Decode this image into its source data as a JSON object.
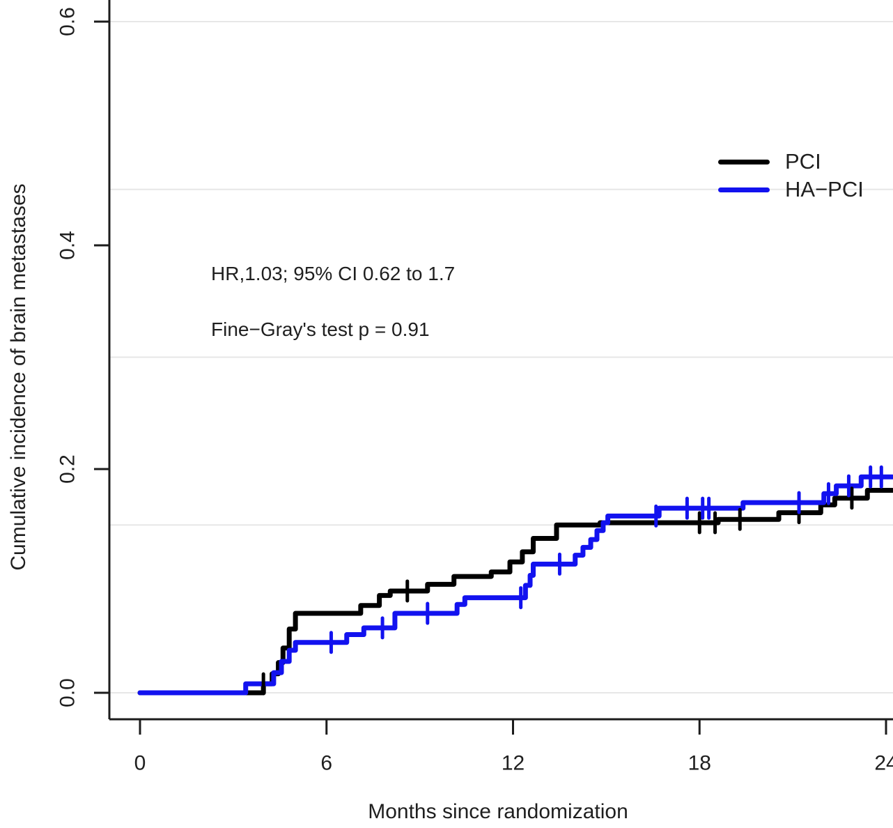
{
  "page": {
    "background": "#ffffff"
  },
  "chart_data": {
    "type": "line",
    "subtype": "step-cumulative-incidence",
    "title": "",
    "xlabel": "Months since randomization",
    "ylabel": "Cumulative incidence of brain metastases",
    "xlim": [
      0,
      24.2
    ],
    "ylim": [
      0,
      0.62
    ],
    "x_ticks": [
      0,
      6,
      12,
      18,
      24
    ],
    "y_ticks": [
      0,
      0.2,
      0.4,
      0.6
    ],
    "y_tick_labels": [
      "0.0",
      "0.2",
      "0.4",
      "0.6"
    ],
    "gridlines_y": [
      0,
      0.15,
      0.3,
      0.45,
      0.6
    ],
    "grid": true,
    "legend_position": "top-right-inside",
    "annotations": [
      "HR,1.03; 95% CI 0.62 to 1.7",
      "Fine−Gray's test p = 0.91"
    ],
    "colors": {
      "axis": "#1c1c1c",
      "grid": "#e7e7e7",
      "text": "#1f1f1f",
      "pci": "#000000",
      "ha_pci": "#1212ef"
    },
    "series": [
      {
        "name": "PCI",
        "color": "#000000",
        "steps": [
          [
            0,
            0
          ],
          [
            3.97,
            0.008
          ],
          [
            4.25,
            0.017
          ],
          [
            4.45,
            0.027
          ],
          [
            4.6,
            0.04
          ],
          [
            4.8,
            0.057
          ],
          [
            5.0,
            0.071
          ],
          [
            7.1,
            0.078
          ],
          [
            7.7,
            0.087
          ],
          [
            8.05,
            0.091
          ],
          [
            9.25,
            0.097
          ],
          [
            10.1,
            0.104
          ],
          [
            11.3,
            0.108
          ],
          [
            11.9,
            0.117
          ],
          [
            12.3,
            0.126
          ],
          [
            12.65,
            0.138
          ],
          [
            13.4,
            0.15
          ],
          [
            14.8,
            0.152
          ],
          [
            18.6,
            0.155
          ],
          [
            20.55,
            0.161
          ],
          [
            21.9,
            0.168
          ],
          [
            22.35,
            0.174
          ],
          [
            23.4,
            0.181
          ],
          [
            24.2,
            0.181
          ]
        ],
        "censor_marks": [
          [
            3.97,
            0.008
          ],
          [
            8.6,
            0.091
          ],
          [
            18.0,
            0.152
          ],
          [
            18.5,
            0.152
          ],
          [
            19.3,
            0.155
          ],
          [
            21.2,
            0.161
          ],
          [
            22.9,
            0.174
          ]
        ]
      },
      {
        "name": "HA−PCI",
        "color": "#1212ef",
        "steps": [
          [
            0,
            0
          ],
          [
            3.4,
            0.008
          ],
          [
            4.3,
            0.018
          ],
          [
            4.55,
            0.028
          ],
          [
            4.8,
            0.038
          ],
          [
            5.0,
            0.045
          ],
          [
            6.65,
            0.052
          ],
          [
            7.2,
            0.058
          ],
          [
            8.2,
            0.071
          ],
          [
            10.2,
            0.079
          ],
          [
            10.45,
            0.085
          ],
          [
            12.4,
            0.096
          ],
          [
            12.55,
            0.105
          ],
          [
            12.65,
            0.115
          ],
          [
            14.0,
            0.123
          ],
          [
            14.25,
            0.13
          ],
          [
            14.5,
            0.137
          ],
          [
            14.7,
            0.145
          ],
          [
            14.9,
            0.152
          ],
          [
            15.05,
            0.158
          ],
          [
            16.7,
            0.165
          ],
          [
            19.4,
            0.17
          ],
          [
            22.0,
            0.178
          ],
          [
            22.4,
            0.185
          ],
          [
            23.2,
            0.193
          ],
          [
            24.2,
            0.193
          ]
        ],
        "censor_marks": [
          [
            6.15,
            0.045
          ],
          [
            7.8,
            0.058
          ],
          [
            9.25,
            0.071
          ],
          [
            12.25,
            0.085
          ],
          [
            13.5,
            0.115
          ],
          [
            16.6,
            0.158
          ],
          [
            17.6,
            0.165
          ],
          [
            18.1,
            0.165
          ],
          [
            18.3,
            0.165
          ],
          [
            21.2,
            0.17
          ],
          [
            22.15,
            0.178
          ],
          [
            22.8,
            0.185
          ],
          [
            23.5,
            0.193
          ],
          [
            23.85,
            0.193
          ]
        ]
      }
    ]
  }
}
